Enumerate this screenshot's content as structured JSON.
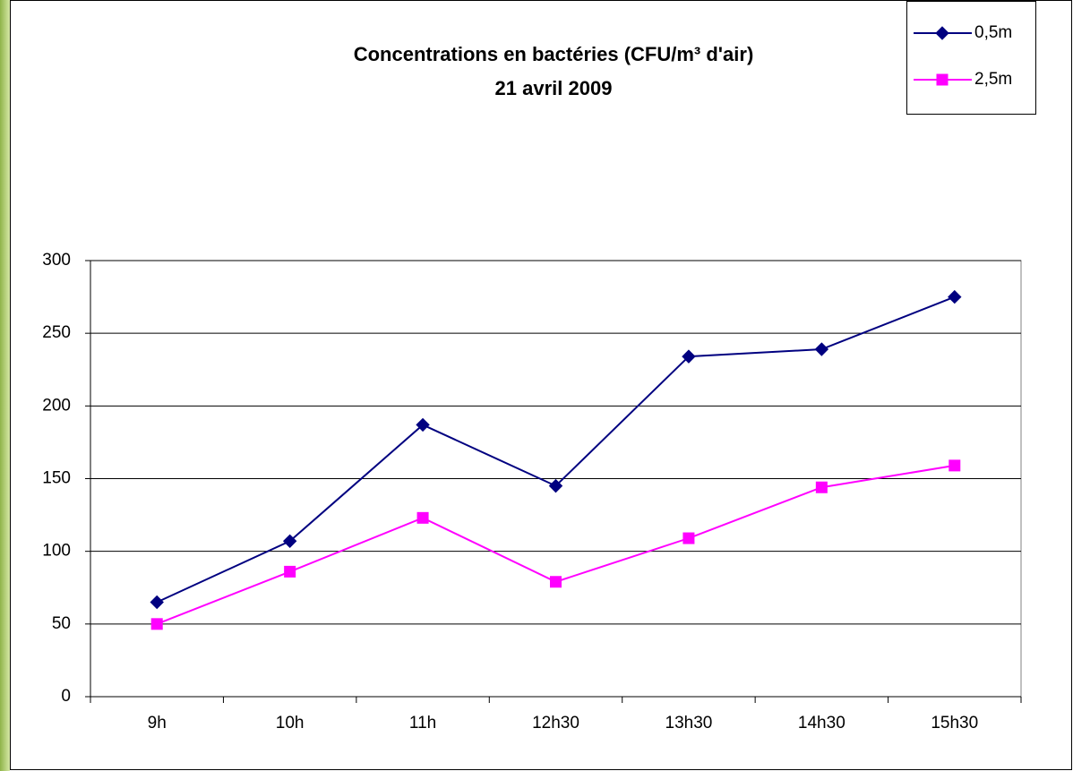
{
  "chart_data": {
    "type": "line",
    "title": "Concentrations en bactéries (CFU/m³ d'air)",
    "subtitle": "21 avril 2009",
    "categories": [
      "9h",
      "10h",
      "11h",
      "12h30",
      "13h30",
      "14h30",
      "15h30"
    ],
    "series": [
      {
        "name": "0,5m",
        "color": "#000080",
        "marker": "diamond",
        "values": [
          65,
          107,
          187,
          145,
          234,
          239,
          275
        ]
      },
      {
        "name": "2,5m",
        "color": "#ff00ff",
        "marker": "square",
        "values": [
          50,
          86,
          123,
          79,
          109,
          144,
          159
        ]
      }
    ],
    "ylim": [
      0,
      300
    ],
    "yticks": [
      0,
      50,
      100,
      150,
      200,
      250,
      300
    ],
    "grid": true,
    "legend": "top-right"
  }
}
